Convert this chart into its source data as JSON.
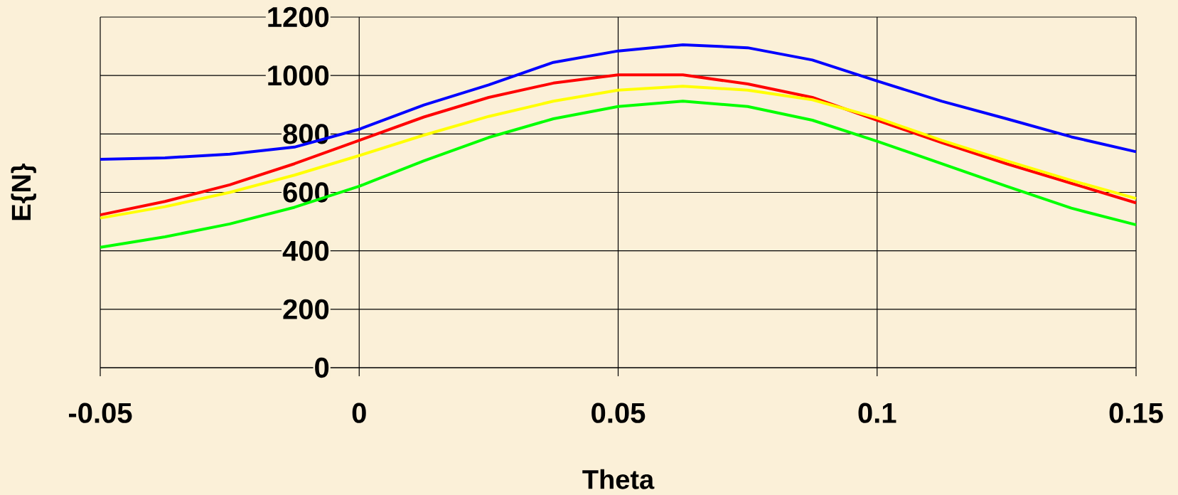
{
  "chart_data": {
    "type": "line",
    "xlabel": "Theta",
    "ylabel": "E{N}",
    "x": [
      -0.05,
      -0.0375,
      -0.025,
      -0.0125,
      0,
      0.0125,
      0.025,
      0.0375,
      0.05,
      0.0625,
      0.075,
      0.0875,
      0.1,
      0.1125,
      0.125,
      0.1375,
      0.15
    ],
    "series": [
      {
        "color": "#0000ff",
        "values": [
          713,
          718,
          731,
          755,
          816,
          899,
          968,
          1045,
          1084,
          1105,
          1095,
          1053,
          981,
          912,
          852,
          790,
          739
        ]
      },
      {
        "color": "#ff0000",
        "values": [
          523,
          569,
          626,
          698,
          778,
          858,
          925,
          974,
          1002,
          1002,
          971,
          925,
          847,
          770,
          698,
          631,
          564
        ]
      },
      {
        "color": "#ffff00",
        "values": [
          512,
          551,
          600,
          659,
          726,
          796,
          860,
          912,
          950,
          963,
          950,
          917,
          855,
          778,
          708,
          641,
          579
        ]
      },
      {
        "color": "#00ff00",
        "values": [
          412,
          448,
          492,
          549,
          621,
          708,
          788,
          852,
          894,
          912,
          894,
          847,
          775,
          698,
          621,
          546,
          489
        ]
      }
    ],
    "xlim": [
      -0.05,
      0.15
    ],
    "xticks": [
      -0.05,
      0,
      0.05,
      0.1,
      0.15
    ],
    "ylim": [
      0,
      1200
    ],
    "yticks": [
      0,
      200,
      400,
      600,
      800,
      1000,
      1200
    ],
    "grid": true,
    "marker": "none",
    "line_style": "solid"
  }
}
